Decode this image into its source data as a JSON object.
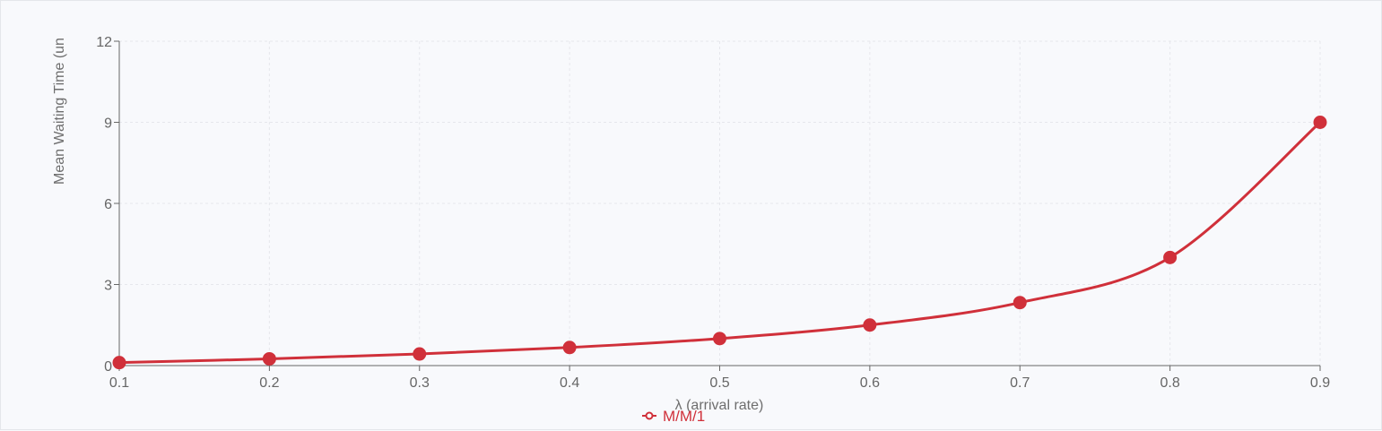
{
  "chart_data": {
    "type": "line",
    "title": "",
    "xlabel": "λ (arrival rate)",
    "ylabel": "Mean Waiting Time (un",
    "x": [
      0.1,
      0.2,
      0.3,
      0.4,
      0.5,
      0.6,
      0.7,
      0.8,
      0.9
    ],
    "x_tick_labels": [
      "0.1",
      "0.2",
      "0.3",
      "0.4",
      "0.5",
      "0.6",
      "0.7",
      "0.8",
      "0.9"
    ],
    "y_ticks": [
      0,
      3,
      6,
      9,
      12
    ],
    "y_tick_labels": [
      "0",
      "3",
      "6",
      "9",
      "12"
    ],
    "xlim": [
      0.1,
      0.9
    ],
    "ylim": [
      0,
      12
    ],
    "grid": true,
    "legend_position": "bottom-center",
    "series": [
      {
        "name": "M/M/1",
        "color": "#d0303a",
        "values": [
          0.11,
          0.25,
          0.43,
          0.67,
          1.0,
          1.5,
          2.33,
          4.0,
          9.0
        ]
      }
    ]
  }
}
